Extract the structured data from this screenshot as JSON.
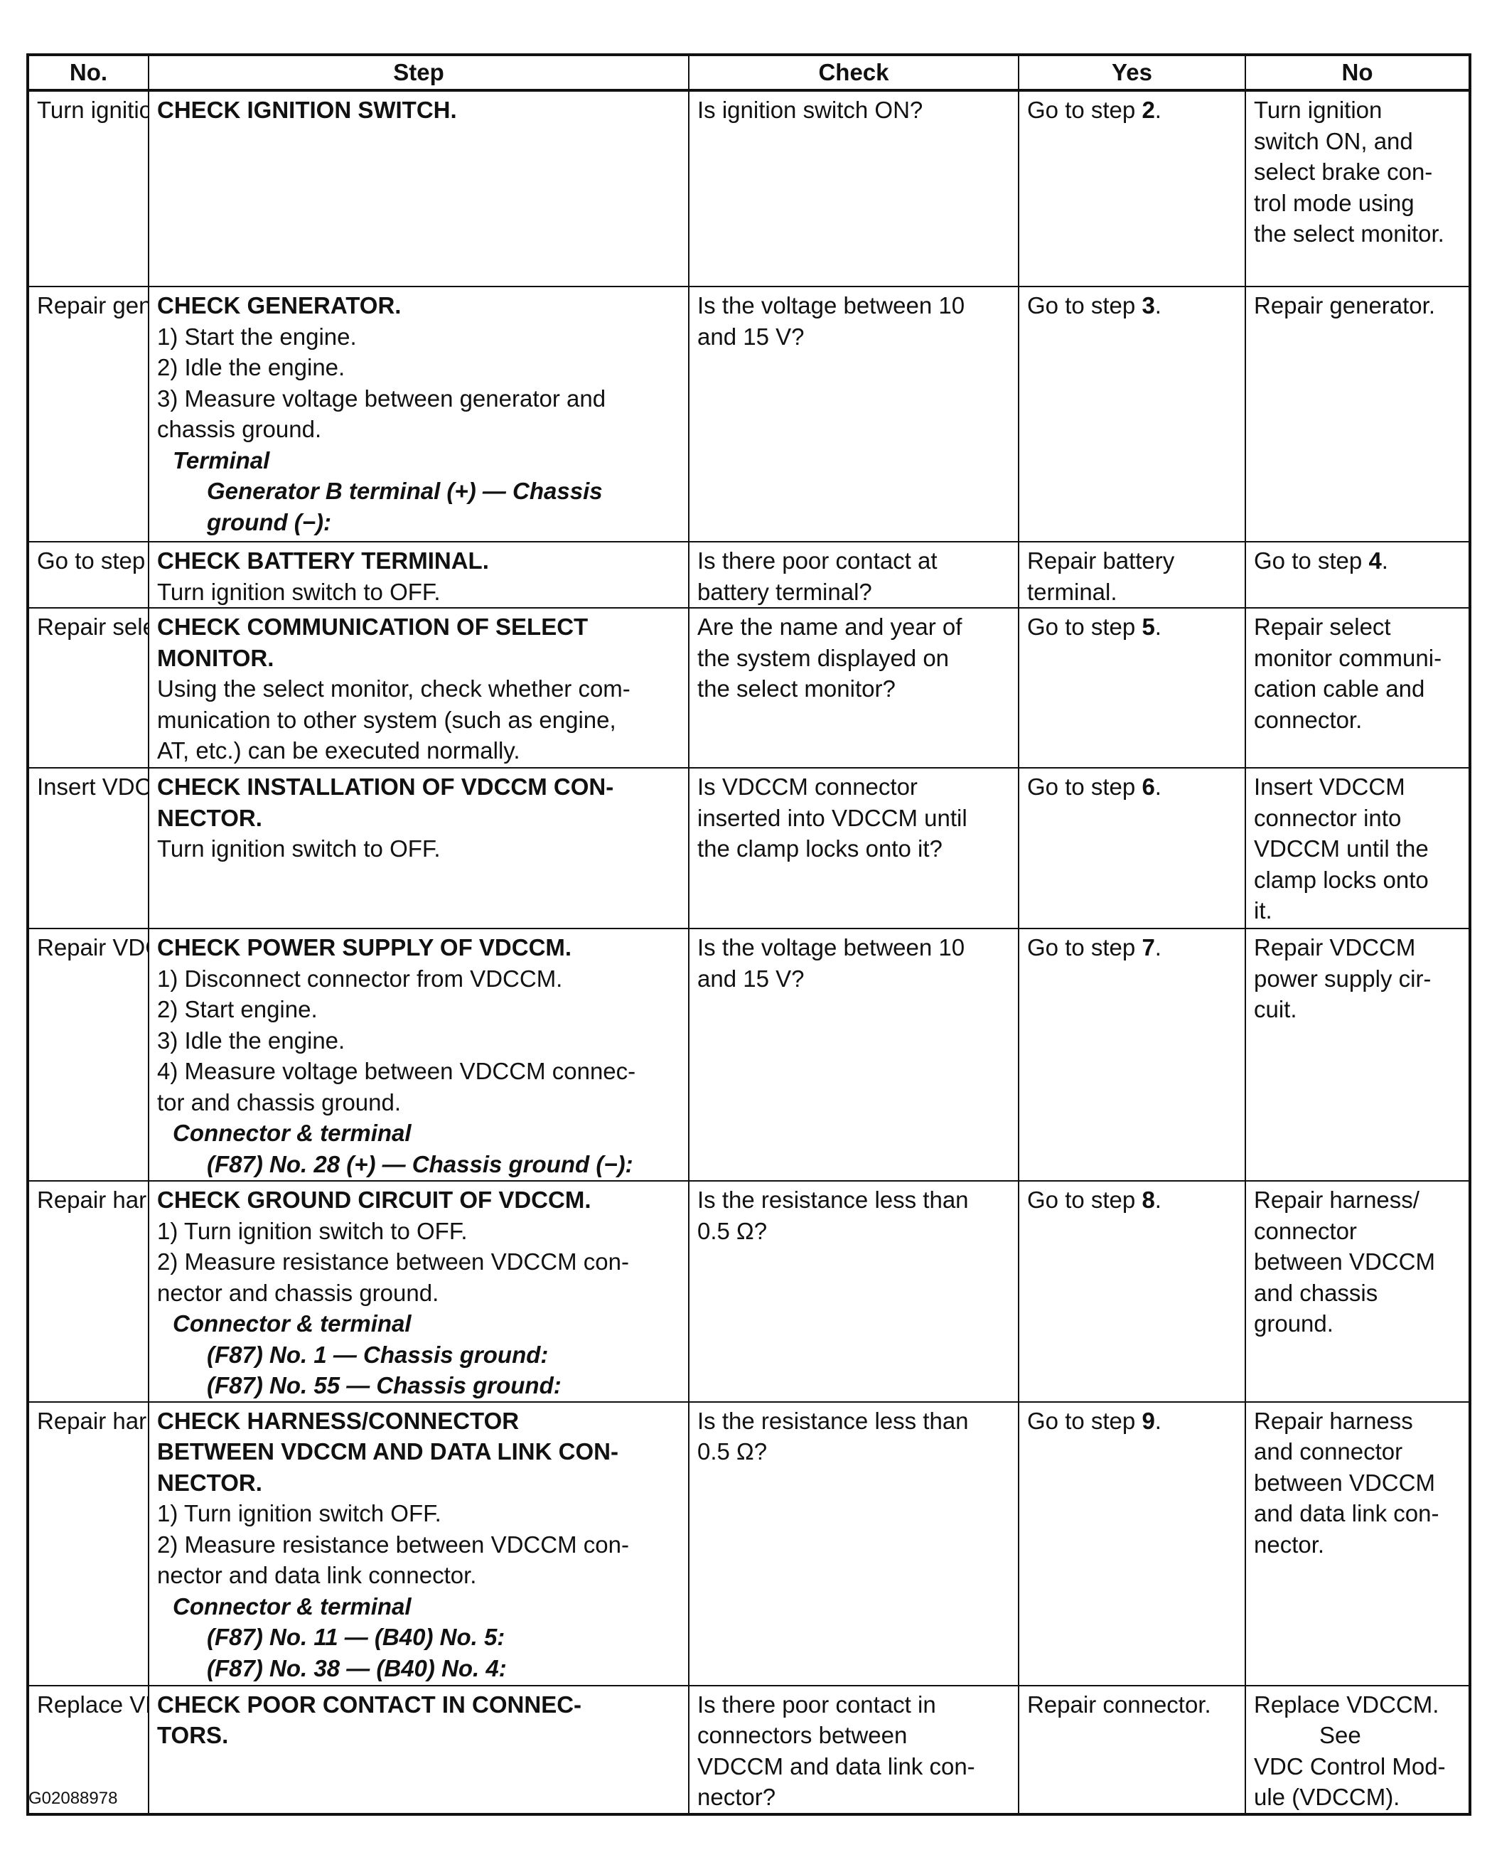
{
  "headers": [
    "No.",
    "Step",
    "Check",
    "Yes",
    "No"
  ],
  "rows": [
    {
      "no": [
        "Turn ignition",
        "switch ON, and",
        "select brake con-",
        "trol mode using",
        "the select monitor."
      ],
      "step": [
        {
          "t": "CHECK IGNITION SWITCH.",
          "s": "title"
        }
      ],
      "check": [
        "Is ignition switch ON?"
      ],
      "yes": [
        {
          "pre": "Go to step ",
          "b": "2",
          "post": "."
        }
      ]
    },
    {
      "no": [
        "Repair generator."
      ],
      "step": [
        {
          "t": "CHECK GENERATOR.",
          "s": "title"
        },
        {
          "t": "1) Start the engine.",
          "s": "text"
        },
        {
          "t": "2) Idle the engine.",
          "s": "text"
        },
        {
          "t": "3) Measure voltage between generator and",
          "s": "text"
        },
        {
          "t": "chassis ground.",
          "s": "text"
        },
        {
          "t": "Terminal",
          "s": "label"
        },
        {
          "t": "Generator B terminal (+) — Chassis",
          "s": "detail"
        },
        {
          "t": "ground (−):",
          "s": "detail"
        }
      ],
      "check": [
        "Is the voltage between 10",
        "and 15 V?"
      ],
      "yes": [
        {
          "pre": "Go to step ",
          "b": "3",
          "post": "."
        }
      ]
    },
    {
      "no": [
        "Go to step |4|."
      ],
      "step": [
        {
          "t": "CHECK BATTERY TERMINAL.",
          "s": "title"
        },
        {
          "t": "Turn ignition switch to OFF.",
          "s": "text"
        }
      ],
      "check": [
        "Is there poor contact at",
        "battery terminal?"
      ],
      "yes": [
        {
          "pre": "Repair battery",
          "b": "",
          "post": ""
        },
        {
          "pre": "terminal.",
          "b": "",
          "post": ""
        }
      ]
    },
    {
      "no": [
        "Repair select",
        "monitor communi-",
        "cation cable and",
        "connector."
      ],
      "step": [
        {
          "t": "CHECK COMMUNICATION OF SELECT",
          "s": "title"
        },
        {
          "t": "MONITOR.",
          "s": "title"
        },
        {
          "t": "Using the select monitor, check whether com-",
          "s": "text"
        },
        {
          "t": "munication to other system (such as engine,",
          "s": "text"
        },
        {
          "t": "AT, etc.) can be executed normally.",
          "s": "text"
        }
      ],
      "check": [
        "Are the name and year of",
        "the system displayed on",
        "the select monitor?"
      ],
      "yes": [
        {
          "pre": "Go to step ",
          "b": "5",
          "post": "."
        }
      ]
    },
    {
      "no": [
        "Insert VDCCM",
        "connector into",
        "VDCCM until the",
        "clamp locks onto",
        "it."
      ],
      "step": [
        {
          "t": "CHECK INSTALLATION OF VDCCM CON-",
          "s": "title"
        },
        {
          "t": "NECTOR.",
          "s": "title"
        },
        {
          "t": "Turn ignition switch to OFF.",
          "s": "text"
        }
      ],
      "check": [
        "Is VDCCM connector",
        "inserted into VDCCM until",
        "the clamp locks onto it?"
      ],
      "yes": [
        {
          "pre": "Go to step ",
          "b": "6",
          "post": "."
        }
      ]
    },
    {
      "no": [
        "Repair VDCCM",
        "power supply cir-",
        "cuit."
      ],
      "step": [
        {
          "t": "CHECK POWER SUPPLY OF VDCCM.",
          "s": "title"
        },
        {
          "t": "1) Disconnect connector from VDCCM.",
          "s": "text"
        },
        {
          "t": "2) Start engine.",
          "s": "text"
        },
        {
          "t": "3) Idle the engine.",
          "s": "text"
        },
        {
          "t": "4) Measure voltage between VDCCM connec-",
          "s": "text"
        },
        {
          "t": "tor and chassis ground.",
          "s": "text"
        },
        {
          "t": "Connector & terminal",
          "s": "label"
        },
        {
          "t": "(F87) No. 28 (+) — Chassis ground (−):",
          "s": "detail"
        }
      ],
      "check": [
        "Is the voltage between 10",
        "and 15 V?"
      ],
      "yes": [
        {
          "pre": "Go to step ",
          "b": "7",
          "post": "."
        }
      ]
    },
    {
      "no": [
        "Repair harness/",
        "connector",
        "between VDCCM",
        "and chassis",
        "ground."
      ],
      "step": [
        {
          "t": "CHECK GROUND CIRCUIT OF VDCCM.",
          "s": "title"
        },
        {
          "t": "1) Turn ignition switch to OFF.",
          "s": "text"
        },
        {
          "t": "2) Measure resistance between VDCCM con-",
          "s": "text"
        },
        {
          "t": "nector and chassis ground.",
          "s": "text"
        },
        {
          "t": "Connector & terminal",
          "s": "label"
        },
        {
          "t": "(F87) No. 1 — Chassis ground:",
          "s": "detail"
        },
        {
          "t": "(F87) No. 55 — Chassis ground:",
          "s": "detail"
        }
      ],
      "check": [
        "Is the resistance less than",
        "0.5 Ω?"
      ],
      "yes": [
        {
          "pre": "Go to step ",
          "b": "8",
          "post": "."
        }
      ]
    },
    {
      "no": [
        "Repair harness",
        "and connector",
        "between VDCCM",
        "and data link con-",
        "nector."
      ],
      "step": [
        {
          "t": "CHECK HARNESS/CONNECTOR",
          "s": "title"
        },
        {
          "t": "BETWEEN VDCCM AND DATA LINK CON-",
          "s": "title"
        },
        {
          "t": "NECTOR.",
          "s": "title"
        },
        {
          "t": "1) Turn ignition switch OFF.",
          "s": "text"
        },
        {
          "t": "2) Measure resistance between VDCCM con-",
          "s": "text"
        },
        {
          "t": "nector and data link connector.",
          "s": "text"
        },
        {
          "t": "Connector & terminal",
          "s": "label"
        },
        {
          "t": "(F87) No. 11 — (B40) No. 5:",
          "s": "detail"
        },
        {
          "t": "(F87) No. 38 — (B40) No. 4:",
          "s": "detail"
        }
      ],
      "check": [
        "Is the resistance less than",
        "0.5 Ω?"
      ],
      "yes": [
        {
          "pre": "Go to step ",
          "b": "9",
          "post": "."
        }
      ]
    },
    {
      "no": [
        "Replace VDCCM.",
        "^See",
        "VDC Control Mod-",
        "ule (VDCCM)."
      ],
      "step": [
        {
          "t": "CHECK POOR CONTACT IN CONNEC-",
          "s": "title"
        },
        {
          "t": "TORS.",
          "s": "title"
        }
      ],
      "check": [
        "Is there poor contact in",
        "connectors between",
        "VDCCM and data link con-",
        "nector?"
      ],
      "yes": [
        {
          "pre": "Repair connector.",
          "b": "",
          "post": ""
        }
      ]
    }
  ],
  "footer": "G02088978"
}
